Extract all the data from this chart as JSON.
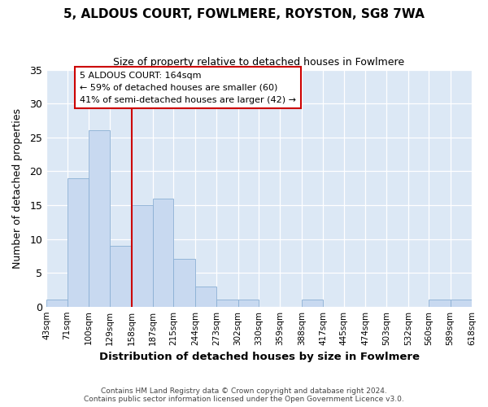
{
  "title": "5, ALDOUS COURT, FOWLMERE, ROYSTON, SG8 7WA",
  "subtitle": "Size of property relative to detached houses in Fowlmere",
  "xlabel": "Distribution of detached houses by size in Fowlmere",
  "ylabel": "Number of detached properties",
  "bar_color": "#c8d9f0",
  "bar_edge_color": "#8aafd4",
  "marker_line_color": "#cc0000",
  "annotation_title": "5 ALDOUS COURT: 164sqm",
  "annotation_line1": "← 59% of detached houses are smaller (60)",
  "annotation_line2": "41% of semi-detached houses are larger (42) →",
  "footer_line1": "Contains HM Land Registry data © Crown copyright and database right 2024.",
  "footer_line2": "Contains public sector information licensed under the Open Government Licence v3.0.",
  "bins": [
    43,
    71,
    100,
    129,
    158,
    187,
    215,
    244,
    273,
    302,
    330,
    359,
    388,
    417,
    445,
    474,
    503,
    532,
    560,
    589,
    618
  ],
  "values": [
    1,
    19,
    26,
    9,
    15,
    16,
    7,
    3,
    1,
    1,
    0,
    0,
    1,
    0,
    0,
    0,
    0,
    0,
    1,
    1
  ],
  "ylim": [
    0,
    35
  ],
  "yticks": [
    0,
    5,
    10,
    15,
    20,
    25,
    30,
    35
  ],
  "fig_facecolor": "#ffffff",
  "plot_bg_color": "#dce8f5"
}
